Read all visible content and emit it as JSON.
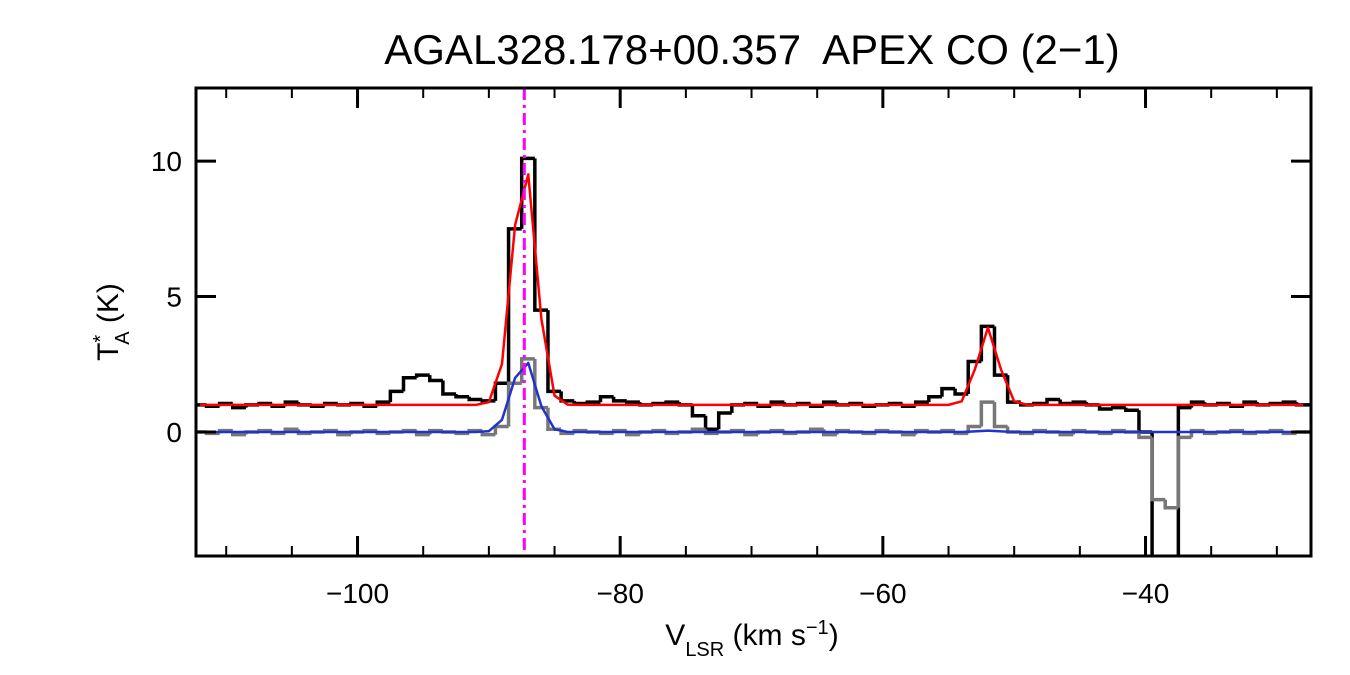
{
  "chart_data": {
    "type": "spectrum",
    "title": "AGAL328.178+00.357  APEX CO (2−1)",
    "xlabel_parts": [
      "V",
      "LSR",
      " (km s",
      "−1",
      ")"
    ],
    "ylabel_parts": [
      "T",
      "*",
      "A",
      " (K)"
    ],
    "xlim": [
      -112.3,
      -27.4
    ],
    "ylim": [
      -4.58,
      12.7
    ],
    "xticks": [
      {
        "value": -100,
        "label": "−100"
      },
      {
        "value": -80,
        "label": "−80"
      },
      {
        "value": -60,
        "label": "−60"
      },
      {
        "value": -40,
        "label": "−40"
      }
    ],
    "xminorticks": [
      -110,
      -105,
      -95,
      -90,
      -85,
      -75,
      -70,
      -65,
      -55,
      -50,
      -45,
      -35,
      -30
    ],
    "yticks": [
      0,
      5,
      10
    ],
    "x": [
      -112,
      -111,
      -110,
      -109,
      -108,
      -107,
      -106,
      -105,
      -104,
      -103,
      -102,
      -101,
      -100,
      -99,
      -98,
      -97,
      -96,
      -95,
      -94,
      -93,
      -92,
      -91,
      -90,
      -89,
      -88,
      -87,
      -86,
      -85,
      -84,
      -83,
      -82,
      -81,
      -80,
      -79,
      -78,
      -77,
      -76,
      -75,
      -74,
      -73,
      -72,
      -71,
      -70,
      -69,
      -68,
      -67,
      -66,
      -65,
      -64,
      -63,
      -62,
      -61,
      -60,
      -59,
      -58,
      -57,
      -56,
      -55,
      -54,
      -53,
      -52,
      -51,
      -50,
      -49,
      -48,
      -47,
      -46,
      -45,
      -44,
      -43,
      -42,
      -41,
      -40,
      -39,
      -38,
      -37,
      -36,
      -35,
      -34,
      -33,
      -32,
      -31,
      -30,
      -29,
      -28
    ],
    "series": [
      {
        "style": "step",
        "color": "#000000",
        "values": [
          1.0,
          0.95,
          1.05,
          0.9,
          1.0,
          1.05,
          0.95,
          1.1,
          1.0,
          0.95,
          1.05,
          1.0,
          1.05,
          0.95,
          1.1,
          1.5,
          2.0,
          2.1,
          1.9,
          1.4,
          1.3,
          1.2,
          1.15,
          1.8,
          7.5,
          10.1,
          4.5,
          1.5,
          1.15,
          1.05,
          1.1,
          1.3,
          1.15,
          1.1,
          1.0,
          1.05,
          1.1,
          1.0,
          0.6,
          0.1,
          0.7,
          1.0,
          1.05,
          0.95,
          1.1,
          1.0,
          1.05,
          0.95,
          1.1,
          1.0,
          1.05,
          0.95,
          1.0,
          1.05,
          0.95,
          1.1,
          1.3,
          1.6,
          1.4,
          2.6,
          3.9,
          2.1,
          1.1,
          1.0,
          1.05,
          1.2,
          1.05,
          1.1,
          1.0,
          0.85,
          0.9,
          0.8,
          0.0,
          -5,
          -5,
          0.9,
          1.1,
          1.0,
          1.05,
          0.95,
          1.1,
          1.0,
          1.05,
          1.1,
          1.0
        ]
      },
      {
        "style": "step",
        "color": "#777777",
        "values": [
          0.0,
          -0.05,
          0.05,
          -0.1,
          0.0,
          0.05,
          -0.05,
          0.1,
          -0.05,
          0.0,
          0.05,
          -0.1,
          0.0,
          0.05,
          -0.05,
          0.0,
          0.05,
          -0.1,
          0.05,
          0.0,
          -0.05,
          0.05,
          -0.1,
          0.2,
          1.8,
          2.7,
          0.9,
          0.1,
          -0.05,
          0.05,
          0.0,
          -0.05,
          0.05,
          -0.1,
          0.0,
          0.05,
          -0.05,
          0.0,
          0.1,
          -0.05,
          0.0,
          0.05,
          -0.1,
          0.0,
          0.05,
          -0.05,
          0.0,
          0.1,
          -0.1,
          0.05,
          0.0,
          -0.05,
          0.05,
          0.0,
          -0.1,
          0.05,
          0.0,
          0.05,
          -0.05,
          0.2,
          1.1,
          0.2,
          0.0,
          -0.05,
          0.05,
          0.0,
          -0.1,
          0.05,
          0.0,
          -0.05,
          0.05,
          0.0,
          -0.2,
          -2.5,
          -2.8,
          -0.2,
          0.05,
          -0.05,
          0.0,
          0.05,
          -0.05,
          0.0,
          0.05,
          -0.05,
          0.0
        ]
      },
      {
        "style": "line",
        "color": "#ff0000",
        "values": [
          1.0,
          1.0,
          1.0,
          1.0,
          1.0,
          1.0,
          1.0,
          1.0,
          1.0,
          1.0,
          1.0,
          1.0,
          1.0,
          1.0,
          1.0,
          1.0,
          1.0,
          1.0,
          1.0,
          1.0,
          1.0,
          1.0,
          1.1,
          2.51,
          7.65,
          9.51,
          4.17,
          1.34,
          1.01,
          1.0,
          1.0,
          1.0,
          1.0,
          1.0,
          1.0,
          1.0,
          1.0,
          1.0,
          1.0,
          1.0,
          1.0,
          1.0,
          1.0,
          1.0,
          1.0,
          1.0,
          1.0,
          1.0,
          1.0,
          1.0,
          1.0,
          1.0,
          1.0,
          1.0,
          1.0,
          1.0,
          1.0,
          1.0,
          1.13,
          2.3,
          3.85,
          2.3,
          1.13,
          1.0,
          1.0,
          1.0,
          1.0,
          1.0,
          1.0,
          1.0,
          1.0,
          1.0,
          1.0,
          1.0,
          1.0,
          1.0,
          1.0,
          1.0,
          1.0,
          1.0,
          1.0,
          1.0,
          1.0,
          1.0,
          1.0
        ]
      },
      {
        "style": "line",
        "color": "#2233cc",
        "values": [
          0,
          0,
          0,
          0,
          0,
          0,
          0,
          0,
          0,
          0,
          0,
          0,
          0,
          0,
          0,
          0,
          0,
          0,
          0,
          0,
          0,
          0,
          0.03,
          0.45,
          2.0,
          2.55,
          0.95,
          0.1,
          0,
          0,
          0,
          0,
          0,
          0,
          0,
          0,
          0,
          0,
          0,
          0,
          0,
          0,
          0,
          0,
          0,
          0,
          0,
          0,
          0,
          0,
          0,
          0,
          0,
          0,
          0,
          0,
          0,
          0,
          0,
          0.02,
          0.05,
          0.02,
          0,
          0,
          0,
          0,
          0,
          0,
          0,
          0,
          0,
          0,
          0,
          0,
          0,
          0,
          0,
          0,
          0,
          0,
          0,
          0,
          0,
          0,
          0
        ]
      }
    ],
    "vline": {
      "x": -87.3,
      "color": "#ff00ff"
    }
  }
}
